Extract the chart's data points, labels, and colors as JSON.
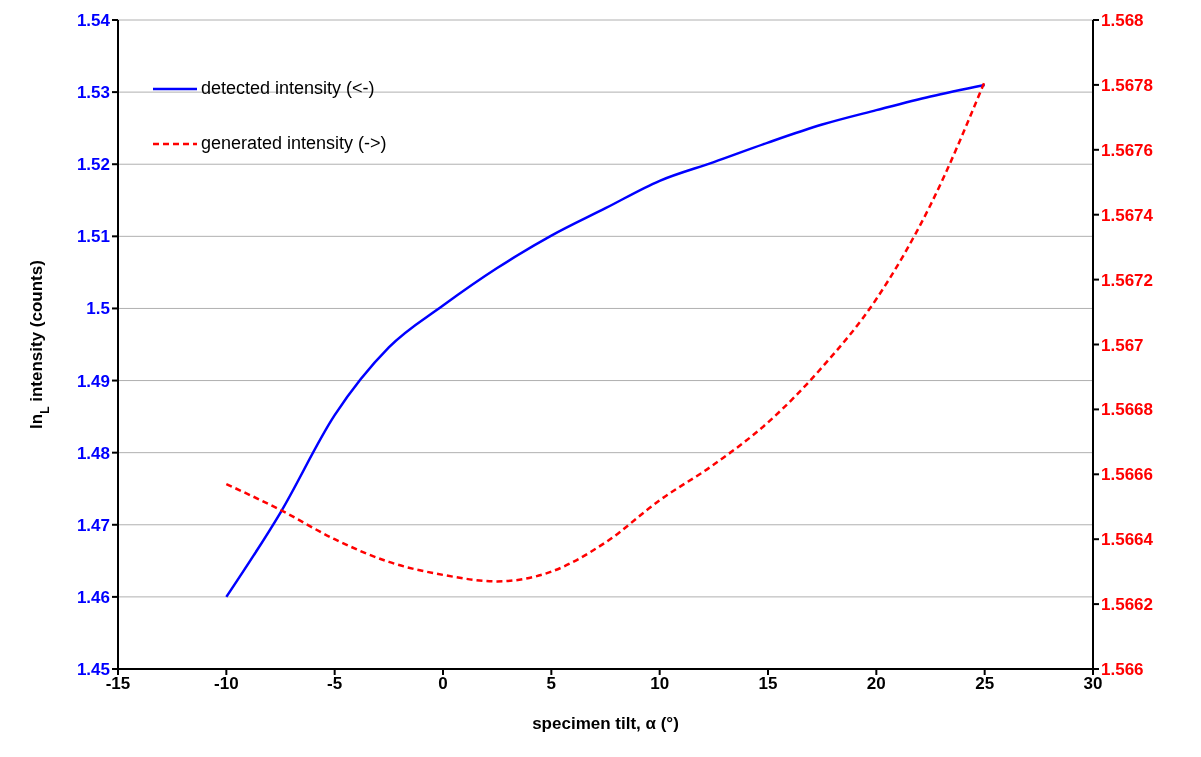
{
  "chart_data": {
    "type": "line",
    "xlabel": "specimen tilt, α (°)",
    "ylabel": "ln$_{L}$ intensity (counts)",
    "x": [
      -10,
      -7.5,
      -5,
      -2.5,
      0,
      2.5,
      5,
      7.5,
      10,
      12.5,
      15,
      17.5,
      20,
      22.5,
      25
    ],
    "series": [
      {
        "name": "detected intensity (<-)",
        "color": "#0000ff",
        "line_style": "solid",
        "values": [
          1.46,
          1.4717,
          1.4852,
          1.4946,
          1.5004,
          1.5056,
          1.5101,
          1.5139,
          1.5177,
          1.5203,
          1.523,
          1.5255,
          1.5275,
          1.5294,
          1.531
        ]
      },
      {
        "name": "generated intensity (->)",
        "color": "#ff0000",
        "line_style": "dashed",
        "axis": "y2",
        "values": [
          1.56657,
          1.56649,
          1.5664,
          1.56633,
          1.56629,
          1.56627,
          1.5663,
          1.56639,
          1.56652,
          1.56663,
          1.56676,
          1.56693,
          1.56714,
          1.56743,
          1.56781
        ]
      }
    ],
    "xlim": [
      -15,
      30
    ],
    "xticks": [
      -15,
      -10,
      -5,
      0,
      5,
      10,
      15,
      20,
      25,
      30
    ],
    "ylim": [
      1.45,
      1.54
    ],
    "yticks": [
      1.45,
      1.46,
      1.47,
      1.48,
      1.49,
      {
        "value": 1.5,
        "label": "1.5"
      },
      1.51,
      1.52,
      1.53,
      1.54
    ],
    "y2lim": [
      1.566,
      1.568
    ],
    "y2ticks": [
      {
        "value": 1.566,
        "label": "1.566"
      },
      1.5662,
      1.5664,
      1.5666,
      1.5668,
      {
        "value": 1.567,
        "label": "1.567"
      },
      1.5672,
      1.5674,
      1.5676,
      1.5678,
      {
        "value": 1.568,
        "label": "1.568"
      }
    ],
    "grid": "y",
    "legend": "top left",
    "marker": "none"
  }
}
